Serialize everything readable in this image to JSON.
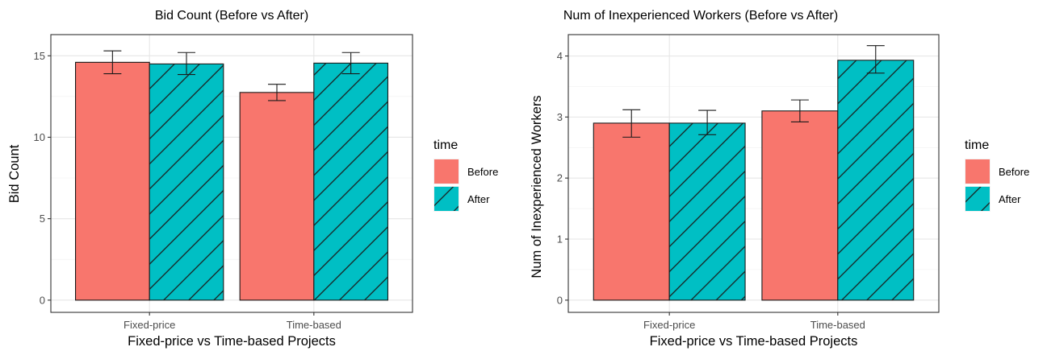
{
  "chart_data": [
    {
      "type": "bar",
      "title": "Bid Count (Before vs After)",
      "xlabel": "Fixed-price vs Time-based Projects",
      "ylabel": "Bid Count",
      "categories": [
        "Fixed-price",
        "Time-based"
      ],
      "ylim": [
        -0.75,
        16.3
      ],
      "yticks": [
        0,
        5,
        10,
        15
      ],
      "grid": true,
      "legend_title": "time",
      "legend_position": "right",
      "series": [
        {
          "name": "Before",
          "color": "#F8766D",
          "pattern": "solid",
          "values": [
            14.6,
            12.75
          ],
          "err_low": [
            13.9,
            12.25
          ],
          "err_high": [
            15.3,
            13.25
          ]
        },
        {
          "name": "After",
          "color": "#00BFC4",
          "pattern": "diagonal-hatch",
          "values": [
            14.5,
            14.55
          ],
          "err_low": [
            13.85,
            13.9
          ],
          "err_high": [
            15.2,
            15.2
          ]
        }
      ]
    },
    {
      "type": "bar",
      "title": "Num of Inexperienced Workers (Before vs After)",
      "xlabel": "Fixed-price vs Time-based Projects",
      "ylabel": "Num of Inexperienced Workers",
      "categories": [
        "Fixed-price",
        "Time-based"
      ],
      "ylim": [
        -0.2,
        4.35
      ],
      "yticks": [
        0,
        1,
        2,
        3,
        4
      ],
      "grid": true,
      "legend_title": "time",
      "legend_position": "right",
      "series": [
        {
          "name": "Before",
          "color": "#F8766D",
          "pattern": "solid",
          "values": [
            2.9,
            3.1
          ],
          "err_low": [
            2.67,
            2.92
          ],
          "err_high": [
            3.12,
            3.28
          ]
        },
        {
          "name": "After",
          "color": "#00BFC4",
          "pattern": "diagonal-hatch",
          "values": [
            2.9,
            3.93
          ],
          "err_low": [
            2.71,
            3.72
          ],
          "err_high": [
            3.11,
            4.17
          ]
        }
      ]
    }
  ]
}
